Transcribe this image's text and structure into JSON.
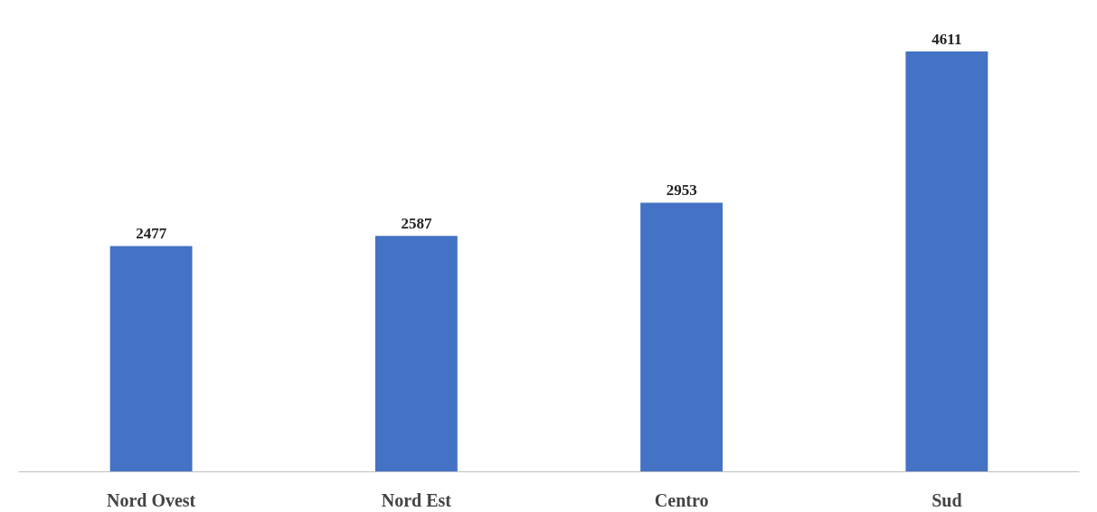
{
  "chart_data": {
    "type": "bar",
    "categories": [
      "Nord Ovest",
      "Nord Est",
      "Centro",
      "Sud"
    ],
    "values": [
      2477,
      2587,
      2953,
      4611
    ],
    "color": "#4472c4",
    "data_labels": true
  }
}
